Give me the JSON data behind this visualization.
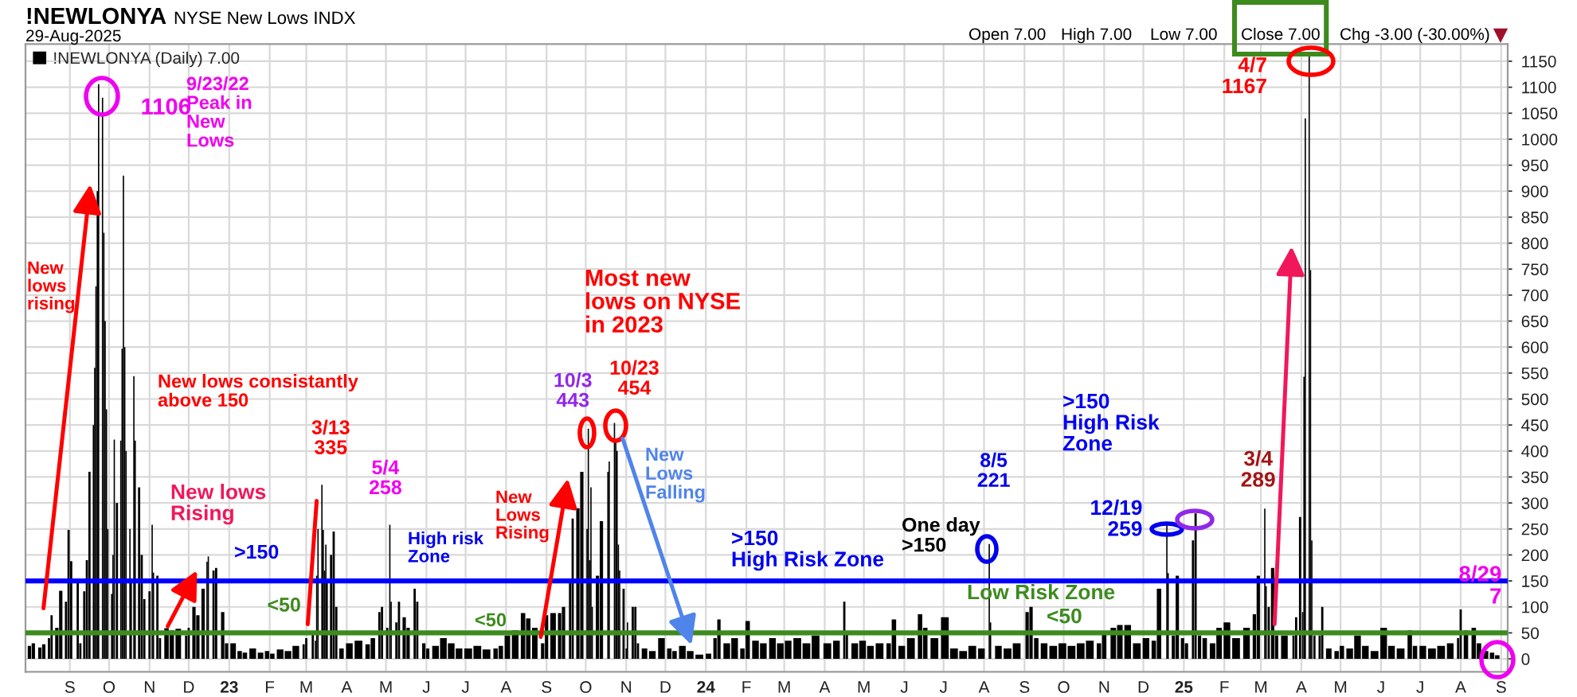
{
  "chart_data": {
    "type": "bar",
    "title": "!NEWLONYA",
    "subtitle": "NYSE New Lows INDX",
    "x": [
      "2022-08-01",
      "2022-08-04",
      "2022-08-09",
      "2022-08-12",
      "2022-08-16",
      "2022-08-18",
      "2022-08-22",
      "2022-08-25",
      "2022-08-29",
      "2022-08-31",
      "2022-09-02",
      "2022-09-07",
      "2022-09-09",
      "2022-09-12",
      "2022-09-14",
      "2022-09-16",
      "2022-09-19",
      "2022-09-20",
      "2022-09-21",
      "2022-09-22",
      "2022-09-23",
      "2022-09-26",
      "2022-09-27",
      "2022-09-28",
      "2022-09-29",
      "2022-09-30",
      "2022-10-03",
      "2022-10-04",
      "2022-10-05",
      "2022-10-07",
      "2022-10-10",
      "2022-10-11",
      "2022-10-12",
      "2022-10-13",
      "2022-10-14",
      "2022-10-17",
      "2022-10-18",
      "2022-10-20",
      "2022-10-21",
      "2022-10-24",
      "2022-10-26",
      "2022-10-28",
      "2022-11-01",
      "2022-11-03",
      "2022-11-04",
      "2022-11-07",
      "2022-11-09",
      "2022-11-14",
      "2022-11-18",
      "2022-11-23",
      "2022-11-29",
      "2022-12-01",
      "2022-12-05",
      "2022-12-08",
      "2022-12-12",
      "2022-12-15",
      "2022-12-16",
      "2022-12-20",
      "2022-12-22",
      "2022-12-27",
      "2022-12-30",
      "2023-01-04",
      "2023-01-09",
      "2023-01-13",
      "2023-01-19",
      "2023-01-25",
      "2023-01-30",
      "2023-02-03",
      "2023-02-09",
      "2023-02-15",
      "2023-02-21",
      "2023-02-27",
      "2023-03-01",
      "2023-03-06",
      "2023-03-08",
      "2023-03-09",
      "2023-03-10",
      "2023-03-13",
      "2023-03-14",
      "2023-03-15",
      "2023-03-16",
      "2023-03-17",
      "2023-03-20",
      "2023-03-22",
      "2023-03-24",
      "2023-03-28",
      "2023-04-03",
      "2023-04-10",
      "2023-04-17",
      "2023-04-21",
      "2023-04-26",
      "2023-04-28",
      "2023-05-02",
      "2023-05-04",
      "2023-05-05",
      "2023-05-09",
      "2023-05-11",
      "2023-05-15",
      "2023-05-18",
      "2023-05-23",
      "2023-05-25",
      "2023-05-30",
      "2023-06-02",
      "2023-06-08",
      "2023-06-14",
      "2023-06-20",
      "2023-06-26",
      "2023-07-03",
      "2023-07-10",
      "2023-07-17",
      "2023-07-24",
      "2023-07-28",
      "2023-08-02",
      "2023-08-08",
      "2023-08-14",
      "2023-08-18",
      "2023-08-23",
      "2023-08-29",
      "2023-09-01",
      "2023-09-06",
      "2023-09-11",
      "2023-09-14",
      "2023-09-19",
      "2023-09-21",
      "2023-09-25",
      "2023-09-28",
      "2023-10-02",
      "2023-10-03",
      "2023-10-04",
      "2023-10-05",
      "2023-10-06",
      "2023-10-10",
      "2023-10-13",
      "2023-10-18",
      "2023-10-19",
      "2023-10-23",
      "2023-10-24",
      "2023-10-25",
      "2023-10-26",
      "2023-10-27",
      "2023-10-30",
      "2023-11-01",
      "2023-11-02",
      "2023-11-06",
      "2023-11-08",
      "2023-11-10",
      "2023-11-15",
      "2023-11-21",
      "2023-11-28",
      "2023-12-04",
      "2023-12-08",
      "2023-12-14",
      "2023-12-20",
      "2023-12-27",
      "2024-01-03",
      "2024-01-08",
      "2024-01-11",
      "2024-01-17",
      "2024-01-23",
      "2024-01-29",
      "2024-02-02",
      "2024-02-08",
      "2024-02-14",
      "2024-02-21",
      "2024-02-27",
      "2024-03-04",
      "2024-03-11",
      "2024-03-18",
      "2024-03-25",
      "2024-04-03",
      "2024-04-10",
      "2024-04-16",
      "2024-04-18",
      "2024-04-24",
      "2024-04-30",
      "2024-05-06",
      "2024-05-13",
      "2024-05-20",
      "2024-05-24",
      "2024-05-30",
      "2024-06-06",
      "2024-06-13",
      "2024-06-17",
      "2024-06-24",
      "2024-07-02",
      "2024-07-09",
      "2024-07-16",
      "2024-07-23",
      "2024-07-30",
      "2024-08-05",
      "2024-08-06",
      "2024-08-12",
      "2024-08-19",
      "2024-08-26",
      "2024-09-03",
      "2024-09-06",
      "2024-09-10",
      "2024-09-16",
      "2024-09-23",
      "2024-09-30",
      "2024-10-07",
      "2024-10-14",
      "2024-10-21",
      "2024-10-28",
      "2024-11-01",
      "2024-11-08",
      "2024-11-13",
      "2024-11-19",
      "2024-11-26",
      "2024-12-03",
      "2024-12-09",
      "2024-12-13",
      "2024-12-19",
      "2024-12-20",
      "2024-12-24",
      "2024-12-27",
      "2024-12-31",
      "2025-01-03",
      "2025-01-08",
      "2025-01-10",
      "2025-01-13",
      "2025-01-17",
      "2025-01-23",
      "2025-01-28",
      "2025-02-03",
      "2025-02-10",
      "2025-02-18",
      "2025-02-24",
      "2025-02-27",
      "2025-03-04",
      "2025-03-05",
      "2025-03-07",
      "2025-03-10",
      "2025-03-13",
      "2025-03-19",
      "2025-03-26",
      "2025-03-28",
      "2025-03-31",
      "2025-04-02",
      "2025-04-03",
      "2025-04-04",
      "2025-04-07",
      "2025-04-08",
      "2025-04-09",
      "2025-04-11",
      "2025-04-15",
      "2025-04-17",
      "2025-04-22",
      "2025-04-28",
      "2025-05-02",
      "2025-05-08",
      "2025-05-14",
      "2025-05-20",
      "2025-05-27",
      "2025-06-03",
      "2025-06-09",
      "2025-06-16",
      "2025-06-23",
      "2025-06-27",
      "2025-07-03",
      "2025-07-10",
      "2025-07-17",
      "2025-07-24",
      "2025-07-30",
      "2025-08-01",
      "2025-08-05",
      "2025-08-11",
      "2025-08-15",
      "2025-08-20",
      "2025-08-25",
      "2025-08-29"
    ],
    "series": [
      {
        "name": "!NEWLONYA (Daily) 7.00",
        "color": "#000000",
        "values": [
          25,
          30,
          22,
          28,
          40,
          84,
          60,
          131,
          110,
          248,
          188,
          150,
          30,
          130,
          190,
          360,
          450,
          560,
          717,
          900,
          1106,
          1080,
          820,
          650,
          480,
          250,
          125,
          200,
          422,
          300,
          420,
          597,
          930,
          600,
          400,
          250,
          150,
          544,
          420,
          330,
          200,
          115,
          130,
          258,
          166,
          160,
          40,
          59,
          55,
          58,
          45,
          60,
          100,
          84,
          135,
          187,
          197,
          170,
          175,
          90,
          30,
          30,
          15,
          12,
          20,
          12,
          15,
          10,
          18,
          15,
          25,
          28,
          40,
          50,
          35,
          160,
          250,
          335,
          248,
          170,
          220,
          146,
          200,
          245,
          100,
          20,
          30,
          35,
          28,
          40,
          90,
          100,
          60,
          258,
          110,
          70,
          110,
          80,
          60,
          135,
          110,
          30,
          20,
          25,
          40,
          30,
          20,
          20,
          25,
          18,
          20,
          25,
          45,
          55,
          88,
          78,
          60,
          30,
          84,
          88,
          88,
          100,
          150,
          270,
          290,
          360,
          250,
          443,
          190,
          330,
          100,
          160,
          265,
          360,
          380,
          454,
          420,
          400,
          220,
          170,
          135,
          20,
          70,
          100,
          100,
          30,
          20,
          15,
          40,
          20,
          15,
          25,
          15,
          8,
          10,
          40,
          76,
          30,
          40,
          20,
          73,
          35,
          30,
          40,
          30,
          35,
          40,
          30,
          45,
          30,
          35,
          110,
          50,
          30,
          35,
          25,
          30,
          30,
          76,
          25,
          40,
          86,
          60,
          40,
          80,
          20,
          15,
          25,
          20,
          221,
          70,
          25,
          20,
          30,
          90,
          100,
          40,
          30,
          25,
          30,
          25,
          30,
          35,
          30,
          50,
          60,
          65,
          65,
          30,
          40,
          35,
          135,
          259,
          165,
          45,
          160,
          40,
          30,
          228,
          280,
          45,
          40,
          30,
          60,
          70,
          40,
          60,
          86,
          160,
          289,
          140,
          100,
          175,
          45,
          45,
          45,
          80,
          273,
          90,
          543,
          1040,
          1167,
          748,
          228,
          45,
          45,
          100,
          20,
          15,
          25,
          20,
          45,
          25,
          15,
          60,
          25,
          20,
          55,
          25,
          25,
          20,
          25,
          30,
          40,
          95,
          55,
          60,
          30,
          15,
          12,
          7
        ]
      }
    ],
    "xlim": [
      "2022-07-29",
      "2025-09-06"
    ],
    "xticks": [
      {
        "value": "2022-09-01",
        "label": "S"
      },
      {
        "value": "2022-10-01",
        "label": "O"
      },
      {
        "value": "2022-11-01",
        "label": "N"
      },
      {
        "value": "2022-12-01",
        "label": "D"
      },
      {
        "value": "2023-01-01",
        "label": "23"
      },
      {
        "value": "2023-02-01",
        "label": "F"
      },
      {
        "value": "2023-03-01",
        "label": "M"
      },
      {
        "value": "2023-04-01",
        "label": "A"
      },
      {
        "value": "2023-05-01",
        "label": "M"
      },
      {
        "value": "2023-06-01",
        "label": "J"
      },
      {
        "value": "2023-07-01",
        "label": "J"
      },
      {
        "value": "2023-08-01",
        "label": "A"
      },
      {
        "value": "2023-09-01",
        "label": "S"
      },
      {
        "value": "2023-10-01",
        "label": "O"
      },
      {
        "value": "2023-11-01",
        "label": "N"
      },
      {
        "value": "2023-12-01",
        "label": "D"
      },
      {
        "value": "2024-01-01",
        "label": "24"
      },
      {
        "value": "2024-02-01",
        "label": "F"
      },
      {
        "value": "2024-03-01",
        "label": "M"
      },
      {
        "value": "2024-04-01",
        "label": "A"
      },
      {
        "value": "2024-05-01",
        "label": "M"
      },
      {
        "value": "2024-06-01",
        "label": "J"
      },
      {
        "value": "2024-07-01",
        "label": "J"
      },
      {
        "value": "2024-08-01",
        "label": "A"
      },
      {
        "value": "2024-09-01",
        "label": "S"
      },
      {
        "value": "2024-10-01",
        "label": "O"
      },
      {
        "value": "2024-11-01",
        "label": "N"
      },
      {
        "value": "2024-12-01",
        "label": "D"
      },
      {
        "value": "2025-01-01",
        "label": "25"
      },
      {
        "value": "2025-02-01",
        "label": "F"
      },
      {
        "value": "2025-03-01",
        "label": "M"
      },
      {
        "value": "2025-04-01",
        "label": "A"
      },
      {
        "value": "2025-05-01",
        "label": "M"
      },
      {
        "value": "2025-06-01",
        "label": "J"
      },
      {
        "value": "2025-07-01",
        "label": "J"
      },
      {
        "value": "2025-08-01",
        "label": "A"
      },
      {
        "value": "2025-09-01",
        "label": "S"
      }
    ],
    "ylim": [
      -25,
      1183
    ],
    "yticks": [
      0,
      50,
      100,
      150,
      200,
      250,
      300,
      350,
      400,
      450,
      500,
      550,
      600,
      650,
      700,
      750,
      800,
      850,
      900,
      950,
      1000,
      1050,
      1100,
      1150
    ],
    "ref_lines": [
      {
        "axis": "y",
        "value": 150,
        "color": "#0000ff"
      },
      {
        "axis": "y",
        "value": 50,
        "color": "#3d8b1f"
      }
    ],
    "grid": true,
    "legend": "top left",
    "annotations": [
      "29-Aug-2025",
      "Open 7.00",
      "High 7.00",
      "Low 7.00",
      "Close 7.00",
      "Chg -3.00 (-30.00%)",
      {
        "text": "1106",
        "x": "2022-09-23",
        "y": 1106
      },
      "9/23/22\nPeak in\nNew\nLows",
      "New\nlows\nrising",
      "New lows consistantly\nabove 150",
      "New lows\nRising",
      ">150",
      {
        "text": "<50",
        "x": "2023-02-12",
        "y": 50
      },
      {
        "text": "3/13\n335",
        "x": "2023-03-13",
        "y": 335
      },
      {
        "text": "5/4\n258",
        "x": "2023-05-04",
        "y": 258
      },
      "High risk\nZone",
      "New\nLows\nRising",
      "<50",
      {
        "text": "10/3\n443",
        "x": "2023-10-03",
        "y": 443
      },
      "Most new\nlows on NYSE\nin 2023",
      {
        "text": "10/23\n454",
        "x": "2023-10-23",
        "y": 454
      },
      "New\nLows\nFalling",
      ">150\nHigh Risk Zone",
      "One day\n>150",
      {
        "text": "8/5\n221",
        "x": "2024-08-05",
        "y": 221
      },
      "Low Risk Zone",
      "<50",
      ">150\nHigh Risk\nZone",
      {
        "text": "12/19\n259",
        "x": "2024-12-19",
        "y": 259
      },
      {
        "text": "3/4\n289",
        "x": "2025-03-04",
        "y": 289
      },
      {
        "text": "4/7\n1167",
        "x": "2025-04-07",
        "y": 1167
      },
      {
        "text": "8/29\n7",
        "x": "2025-08-29",
        "y": 7
      }
    ]
  }
}
